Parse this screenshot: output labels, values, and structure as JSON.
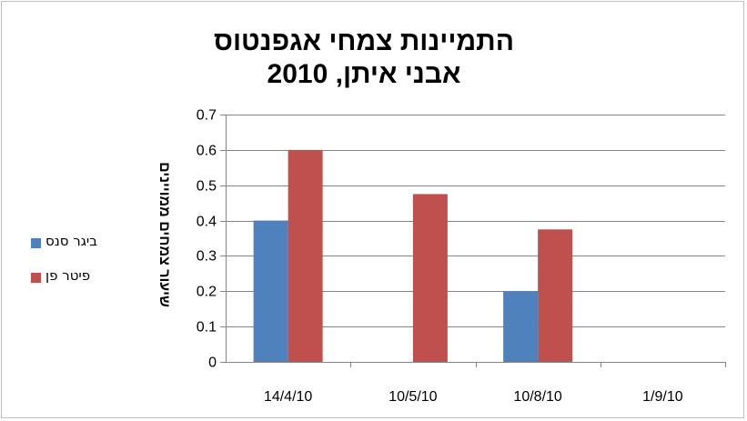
{
  "chart_data": {
    "type": "bar",
    "title_lines": [
      "התמיינות צמחי אגפנטוס",
      "אבני איתן, 2010"
    ],
    "xlabel": "",
    "ylabel": "שיעור צמחים ממויינים",
    "categories": [
      "14/4/10",
      "10/5/10",
      "10/8/10",
      "1/9/10"
    ],
    "series": [
      {
        "name": "ביגר סנס",
        "color": "#4f81bd",
        "values": [
          0.4,
          0,
          0.2,
          0
        ]
      },
      {
        "name": "פיטר פן",
        "color": "#c0504d",
        "values": [
          0.6,
          0.475,
          0.375,
          0
        ]
      }
    ],
    "ylim": [
      0,
      0.7
    ],
    "yticks": [
      0,
      0.1,
      0.2,
      0.3,
      0.4,
      0.5,
      0.6,
      0.7
    ],
    "grid": true,
    "legend_position": "left"
  }
}
